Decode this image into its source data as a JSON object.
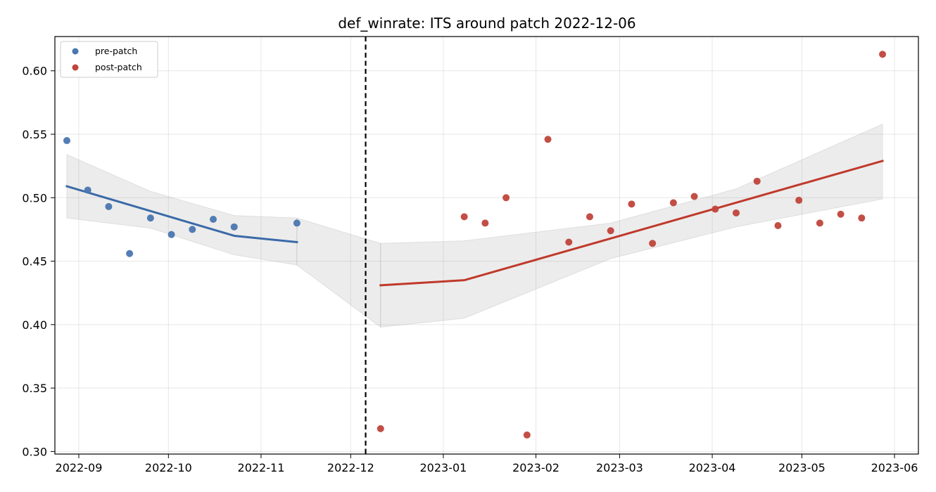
{
  "chart_data": {
    "type": "scatter",
    "title": "def_winrate: ITS around patch 2022-12-06",
    "xlabel": "",
    "ylabel": "",
    "x_axis": {
      "type": "date",
      "range": [
        "2022-08-24",
        "2023-06-09"
      ],
      "ticks": [
        "2022-09-01",
        "2022-10-01",
        "2022-11-01",
        "2022-12-01",
        "2023-01-01",
        "2023-02-01",
        "2023-03-01",
        "2023-04-01",
        "2023-05-01",
        "2023-06-01"
      ],
      "tick_labels": [
        "2022-09",
        "2022-10",
        "2022-11",
        "2022-12",
        "2023-01",
        "2023-02",
        "2023-03",
        "2023-04",
        "2023-05",
        "2023-06"
      ]
    },
    "y_axis": {
      "range": [
        0.298,
        0.627
      ],
      "ticks": [
        0.3,
        0.35,
        0.4,
        0.45,
        0.5,
        0.55,
        0.6
      ],
      "tick_labels": [
        "0.30",
        "0.35",
        "0.40",
        "0.45",
        "0.50",
        "0.55",
        "0.60"
      ]
    },
    "grid": true,
    "legend_position": "top-left",
    "patch_date": "2022-12-06",
    "series": [
      {
        "name": "pre-patch",
        "color": "#4a76b0",
        "points": [
          {
            "x": "2022-08-28",
            "y": 0.545
          },
          {
            "x": "2022-09-04",
            "y": 0.506
          },
          {
            "x": "2022-09-11",
            "y": 0.493
          },
          {
            "x": "2022-09-18",
            "y": 0.456
          },
          {
            "x": "2022-09-25",
            "y": 0.484
          },
          {
            "x": "2022-10-02",
            "y": 0.471
          },
          {
            "x": "2022-10-09",
            "y": 0.475
          },
          {
            "x": "2022-10-16",
            "y": 0.483
          },
          {
            "x": "2022-10-23",
            "y": 0.477
          },
          {
            "x": "2022-11-13",
            "y": 0.48
          }
        ]
      },
      {
        "name": "post-patch",
        "color": "#c0443b",
        "points": [
          {
            "x": "2022-12-11",
            "y": 0.318
          },
          {
            "x": "2023-01-08",
            "y": 0.485
          },
          {
            "x": "2023-01-15",
            "y": 0.48
          },
          {
            "x": "2023-01-22",
            "y": 0.5
          },
          {
            "x": "2023-01-29",
            "y": 0.313
          },
          {
            "x": "2023-02-05",
            "y": 0.546
          },
          {
            "x": "2023-02-12",
            "y": 0.465
          },
          {
            "x": "2023-02-19",
            "y": 0.485
          },
          {
            "x": "2023-02-26",
            "y": 0.474
          },
          {
            "x": "2023-03-05",
            "y": 0.495
          },
          {
            "x": "2023-03-12",
            "y": 0.464
          },
          {
            "x": "2023-03-19",
            "y": 0.496
          },
          {
            "x": "2023-03-26",
            "y": 0.501
          },
          {
            "x": "2023-04-02",
            "y": 0.491
          },
          {
            "x": "2023-04-09",
            "y": 0.488
          },
          {
            "x": "2023-04-16",
            "y": 0.513
          },
          {
            "x": "2023-04-23",
            "y": 0.478
          },
          {
            "x": "2023-04-30",
            "y": 0.498
          },
          {
            "x": "2023-05-07",
            "y": 0.48
          },
          {
            "x": "2023-05-14",
            "y": 0.487
          },
          {
            "x": "2023-05-21",
            "y": 0.484
          },
          {
            "x": "2023-05-28",
            "y": 0.613
          }
        ]
      }
    ],
    "fits": [
      {
        "segment": "pre-patch",
        "color": "#3a6aa8",
        "line": [
          {
            "x": "2022-08-28",
            "y": 0.509
          },
          {
            "x": "2022-10-23",
            "y": 0.47
          },
          {
            "x": "2022-11-13",
            "y": 0.465
          }
        ],
        "ci_upper": [
          {
            "x": "2022-08-28",
            "y": 0.534
          },
          {
            "x": "2022-09-25",
            "y": 0.505
          },
          {
            "x": "2022-10-23",
            "y": 0.486
          },
          {
            "x": "2022-11-13",
            "y": 0.484
          }
        ],
        "ci_lower": [
          {
            "x": "2022-08-28",
            "y": 0.484
          },
          {
            "x": "2022-09-25",
            "y": 0.476
          },
          {
            "x": "2022-10-23",
            "y": 0.455
          },
          {
            "x": "2022-11-13",
            "y": 0.447
          }
        ]
      },
      {
        "segment": "post-patch",
        "color": "#c0392b",
        "line": [
          {
            "x": "2022-12-11",
            "y": 0.431
          },
          {
            "x": "2023-01-08",
            "y": 0.435
          },
          {
            "x": "2023-05-28",
            "y": 0.529
          }
        ],
        "ci_upper": [
          {
            "x": "2022-12-11",
            "y": 0.464
          },
          {
            "x": "2023-01-08",
            "y": 0.466
          },
          {
            "x": "2023-02-26",
            "y": 0.48
          },
          {
            "x": "2023-04-09",
            "y": 0.507
          },
          {
            "x": "2023-05-28",
            "y": 0.558
          }
        ],
        "ci_lower": [
          {
            "x": "2022-12-11",
            "y": 0.398
          },
          {
            "x": "2023-01-08",
            "y": 0.405
          },
          {
            "x": "2023-02-26",
            "y": 0.452
          },
          {
            "x": "2023-04-09",
            "y": 0.477
          },
          {
            "x": "2023-05-28",
            "y": 0.499
          }
        ]
      }
    ],
    "bridge_band": {
      "upper": [
        {
          "x": "2022-11-13",
          "y": 0.484
        },
        {
          "x": "2022-12-11",
          "y": 0.464
        }
      ],
      "lower": [
        {
          "x": "2022-11-13",
          "y": 0.447
        },
        {
          "x": "2022-12-11",
          "y": 0.398
        }
      ]
    }
  }
}
